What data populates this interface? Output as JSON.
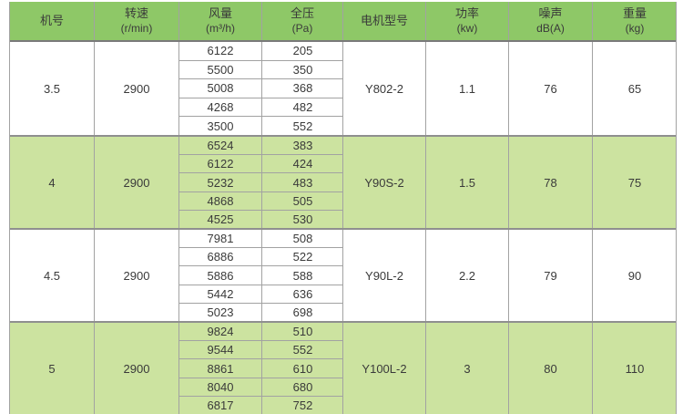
{
  "table": {
    "columns": [
      {
        "label": "机号",
        "sub": ""
      },
      {
        "label": "转速",
        "sub": "(r/min)"
      },
      {
        "label": "风量",
        "sub": "(m³/h)"
      },
      {
        "label": "全压",
        "sub": "(Pa)"
      },
      {
        "label": "电机型号",
        "sub": ""
      },
      {
        "label": "功率",
        "sub": "(kw)"
      },
      {
        "label": "噪声",
        "sub": "dB(A)"
      },
      {
        "label": "重量",
        "sub": "(kg)"
      }
    ],
    "groups": [
      {
        "fan_size": "3.5",
        "speed_rpm": "2900",
        "airflow_pressure_rows": [
          [
            "6122",
            "205"
          ],
          [
            "5500",
            "350"
          ],
          [
            "5008",
            "368"
          ],
          [
            "4268",
            "482"
          ],
          [
            "3500",
            "552"
          ]
        ],
        "motor_model": "Y802-2",
        "power_kw": "1.1",
        "noise_db": "76",
        "weight_kg": "65",
        "shaded": false
      },
      {
        "fan_size": "4",
        "speed_rpm": "2900",
        "airflow_pressure_rows": [
          [
            "6524",
            "383"
          ],
          [
            "6122",
            "424"
          ],
          [
            "5232",
            "483"
          ],
          [
            "4868",
            "505"
          ],
          [
            "4525",
            "530"
          ]
        ],
        "motor_model": "Y90S-2",
        "power_kw": "1.5",
        "noise_db": "78",
        "weight_kg": "75",
        "shaded": true
      },
      {
        "fan_size": "4.5",
        "speed_rpm": "2900",
        "airflow_pressure_rows": [
          [
            "7981",
            "508"
          ],
          [
            "6886",
            "522"
          ],
          [
            "5886",
            "588"
          ],
          [
            "5442",
            "636"
          ],
          [
            "5023",
            "698"
          ]
        ],
        "motor_model": "Y90L-2",
        "power_kw": "2.2",
        "noise_db": "79",
        "weight_kg": "90",
        "shaded": false
      },
      {
        "fan_size": "5",
        "speed_rpm": "2900",
        "airflow_pressure_rows": [
          [
            "9824",
            "510"
          ],
          [
            "9544",
            "552"
          ],
          [
            "8861",
            "610"
          ],
          [
            "8040",
            "680"
          ],
          [
            "6817",
            "752"
          ]
        ],
        "motor_model": "Y100L-2",
        "power_kw": "3",
        "noise_db": "80",
        "weight_kg": "110",
        "shaded": true
      }
    ],
    "colors": {
      "header_bg": "#8ec867",
      "shaded_row_bg": "#cce3a0",
      "border": "#a2a2a2",
      "text": "#3a3a3a"
    }
  }
}
